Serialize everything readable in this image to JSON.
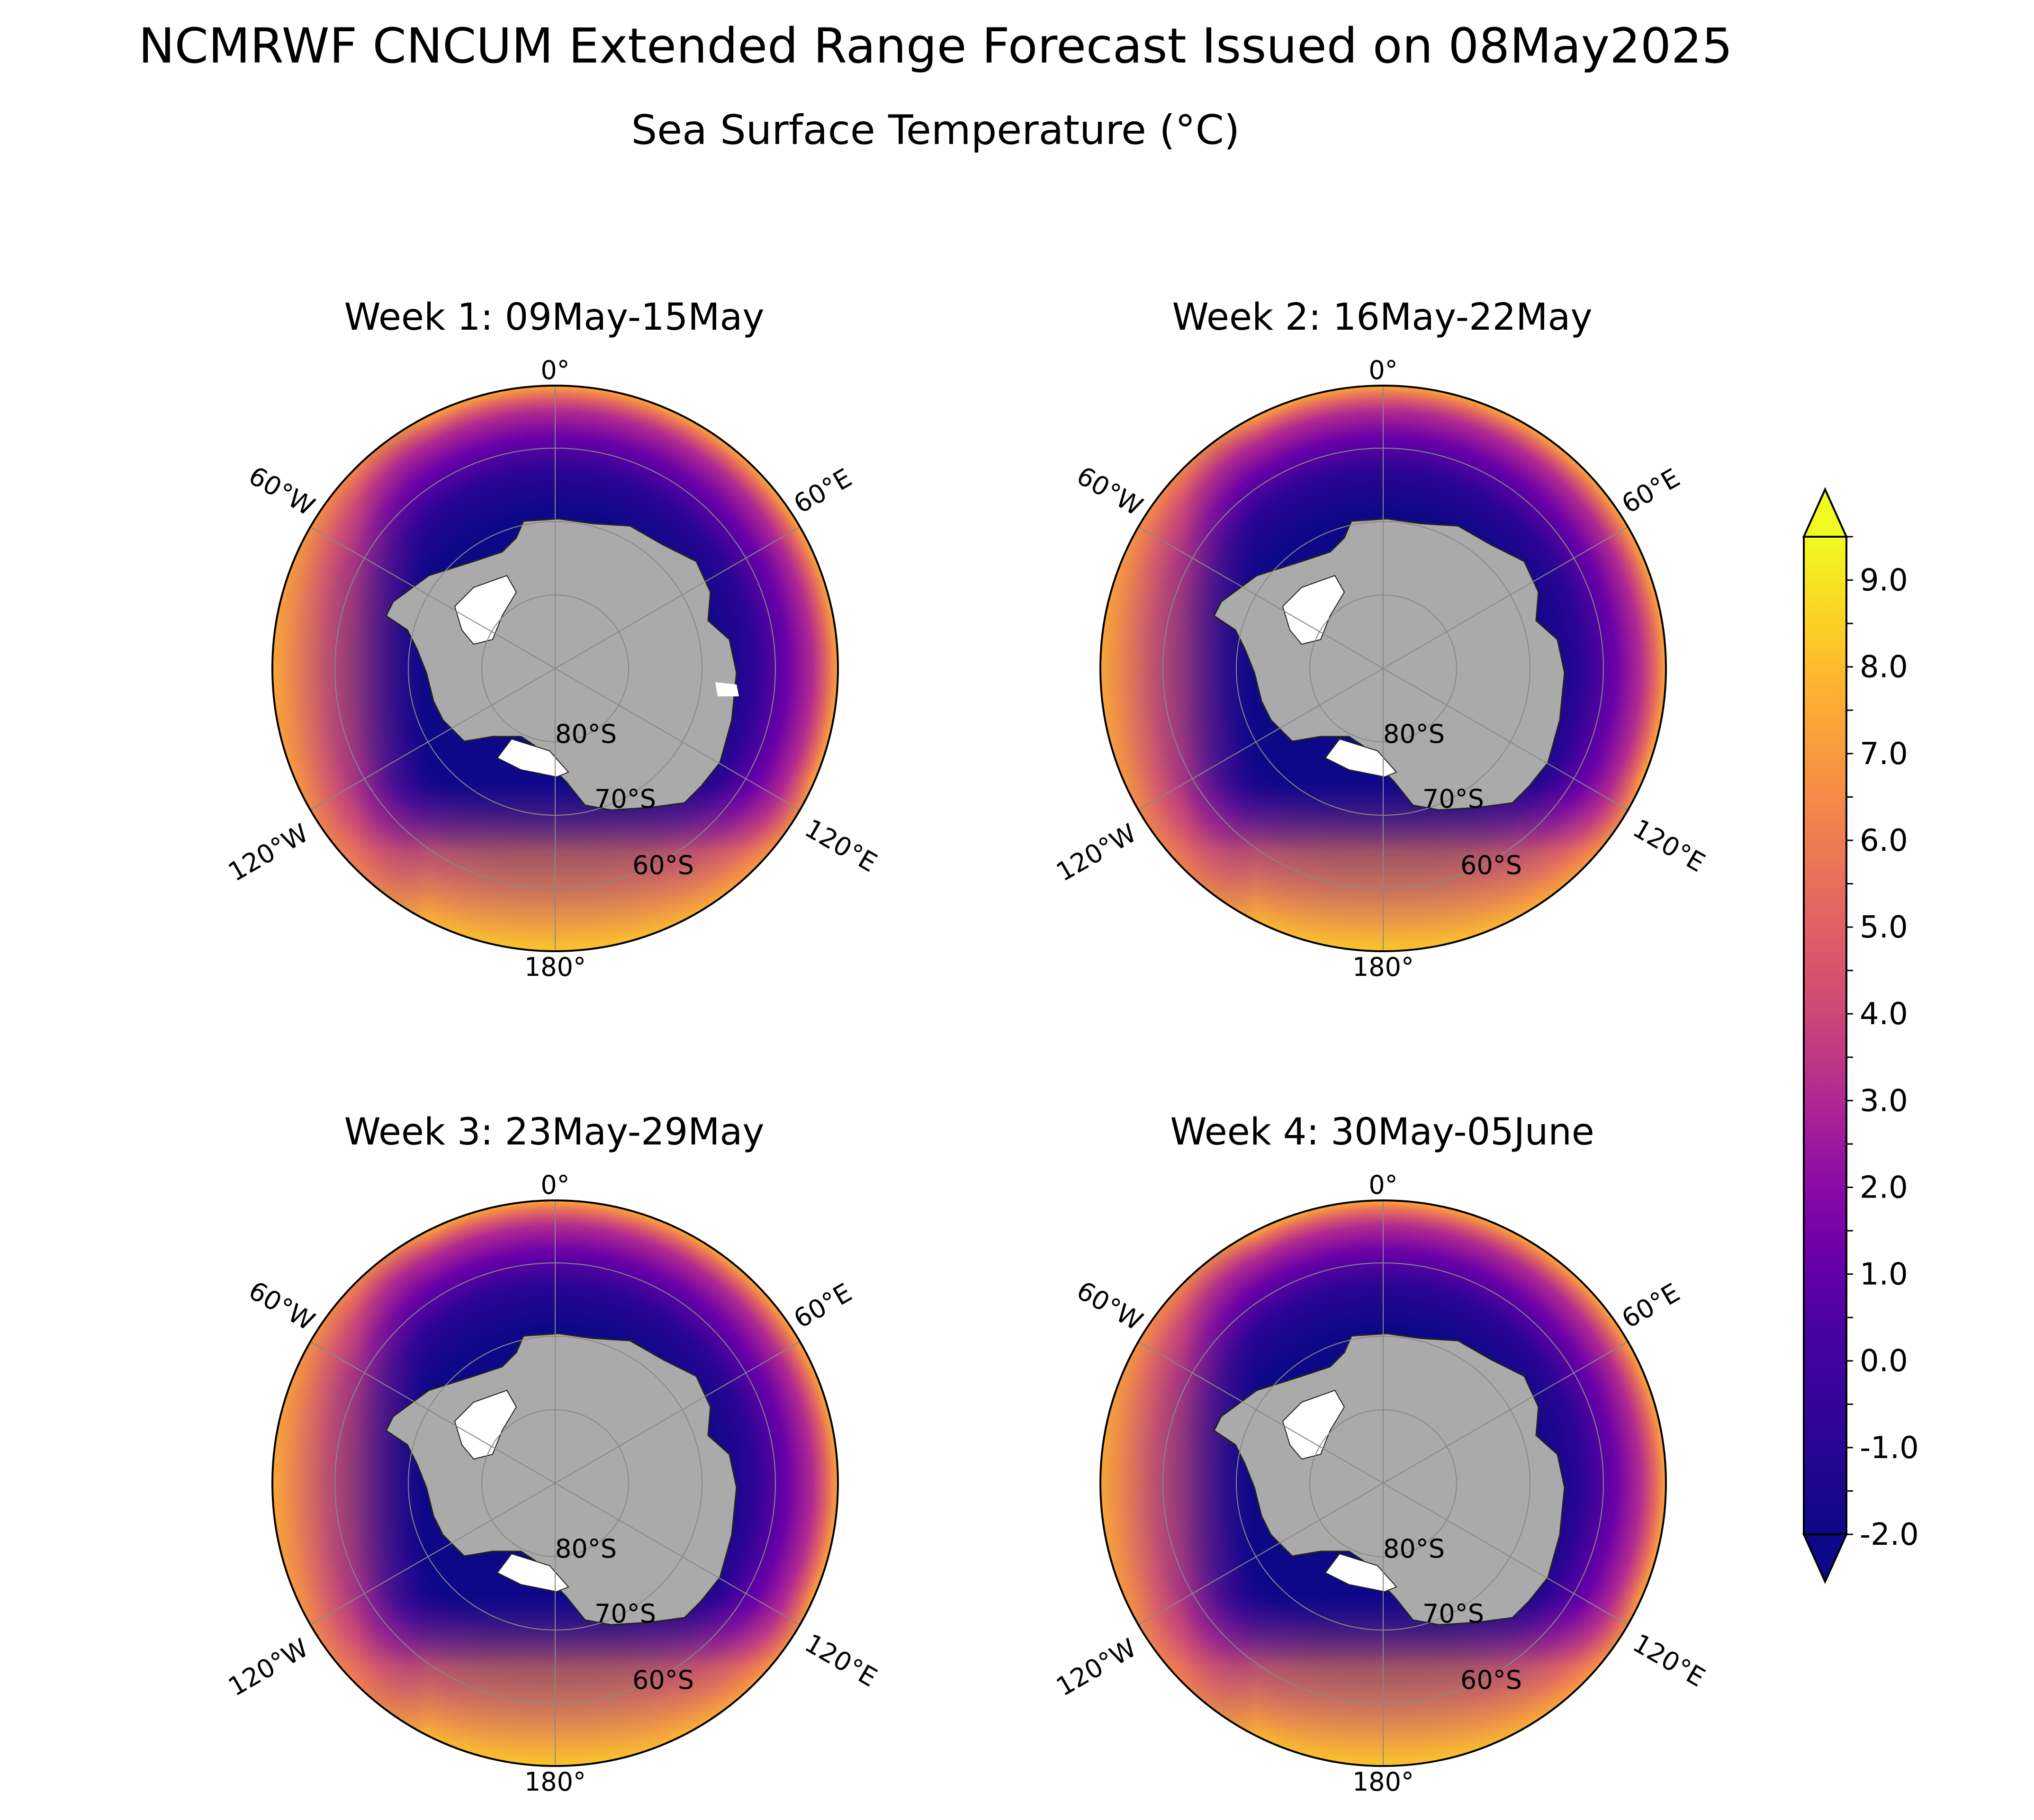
{
  "title": "NCMRWF CNCUM Extended Range Forecast Issued on 08May2025",
  "subtitle": "Sea Surface Temperature (°C)",
  "panels": [
    {
      "title": "Week 1: 09May-15May"
    },
    {
      "title": "Week 2: 16May-22May"
    },
    {
      "title": "Week 3: 23May-29May"
    },
    {
      "title": "Week 4: 30May-05June"
    }
  ],
  "map_labels": {
    "lon_0": "0°",
    "lon_60e": "60°E",
    "lon_120e": "120°E",
    "lon_180": "180°",
    "lon_120w": "120°W",
    "lon_60w": "60°W",
    "lat_80s": "80°S",
    "lat_70s": "70°S",
    "lat_60s": "60°S"
  },
  "colorbar": {
    "colormap": "plasma",
    "min": -2.0,
    "max": 9.5,
    "step": 0.5,
    "extend": "both",
    "tick_labels": [
      "9.0",
      "8.0",
      "7.0",
      "6.0",
      "5.0",
      "4.0",
      "3.0",
      "2.0",
      "1.0",
      "0.0",
      "-1.0",
      "-2.0"
    ],
    "tick_values": [
      9,
      8,
      7,
      6,
      5,
      4,
      3,
      2,
      1,
      0,
      -1,
      -2
    ]
  },
  "colors": {
    "land": "#aaaaaa",
    "ice_shelf": "#ffffff",
    "gridline": "#888888",
    "cold": "#0d0887",
    "warm": "#f0f921"
  }
}
